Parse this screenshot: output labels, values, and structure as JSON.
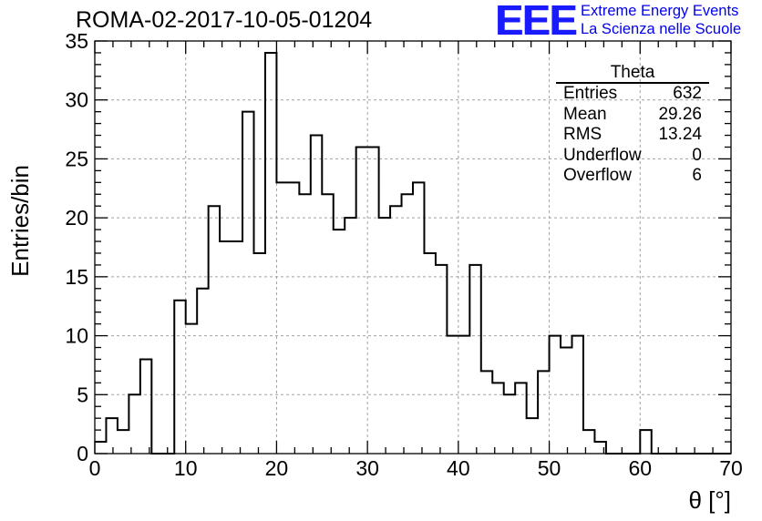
{
  "header": {
    "run_title": "ROMA-02-2017-10-05-01204"
  },
  "logo": {
    "mark": "EEE",
    "line1": "Extreme Energy Events",
    "line2": "La Scienza nelle Scuole",
    "color": "#1a1aff"
  },
  "stats_box": {
    "title": "Theta",
    "rows": [
      {
        "label": "Entries",
        "value": "632"
      },
      {
        "label": "Mean",
        "value": "29.26"
      },
      {
        "label": "RMS",
        "value": "13.24"
      },
      {
        "label": "Underflow",
        "value": "0"
      },
      {
        "label": "Overflow",
        "value": "6"
      }
    ]
  },
  "chart_data": {
    "type": "histogram",
    "xlabel": "θ [°]",
    "ylabel": "Entries/bin",
    "xlim": [
      0,
      70
    ],
    "ylim": [
      0,
      35
    ],
    "x_ticks": [
      0,
      10,
      20,
      30,
      40,
      50,
      60,
      70
    ],
    "y_ticks": [
      0,
      5,
      10,
      15,
      20,
      25,
      30,
      35
    ],
    "grid": true,
    "bin_width": 1.25,
    "bin_edges_start": 0,
    "counts": [
      1,
      3,
      2,
      5,
      8,
      0,
      0,
      13,
      11,
      14,
      21,
      18,
      18,
      29,
      17,
      34,
      23,
      23,
      22,
      27,
      22,
      19,
      20,
      26,
      26,
      20,
      21,
      22,
      23,
      17,
      16,
      10,
      10,
      16,
      7,
      6,
      5,
      6,
      3,
      7,
      10,
      9,
      10,
      2,
      1,
      0,
      0,
      0,
      2,
      0,
      0,
      0,
      0,
      0,
      0,
      0
    ]
  }
}
